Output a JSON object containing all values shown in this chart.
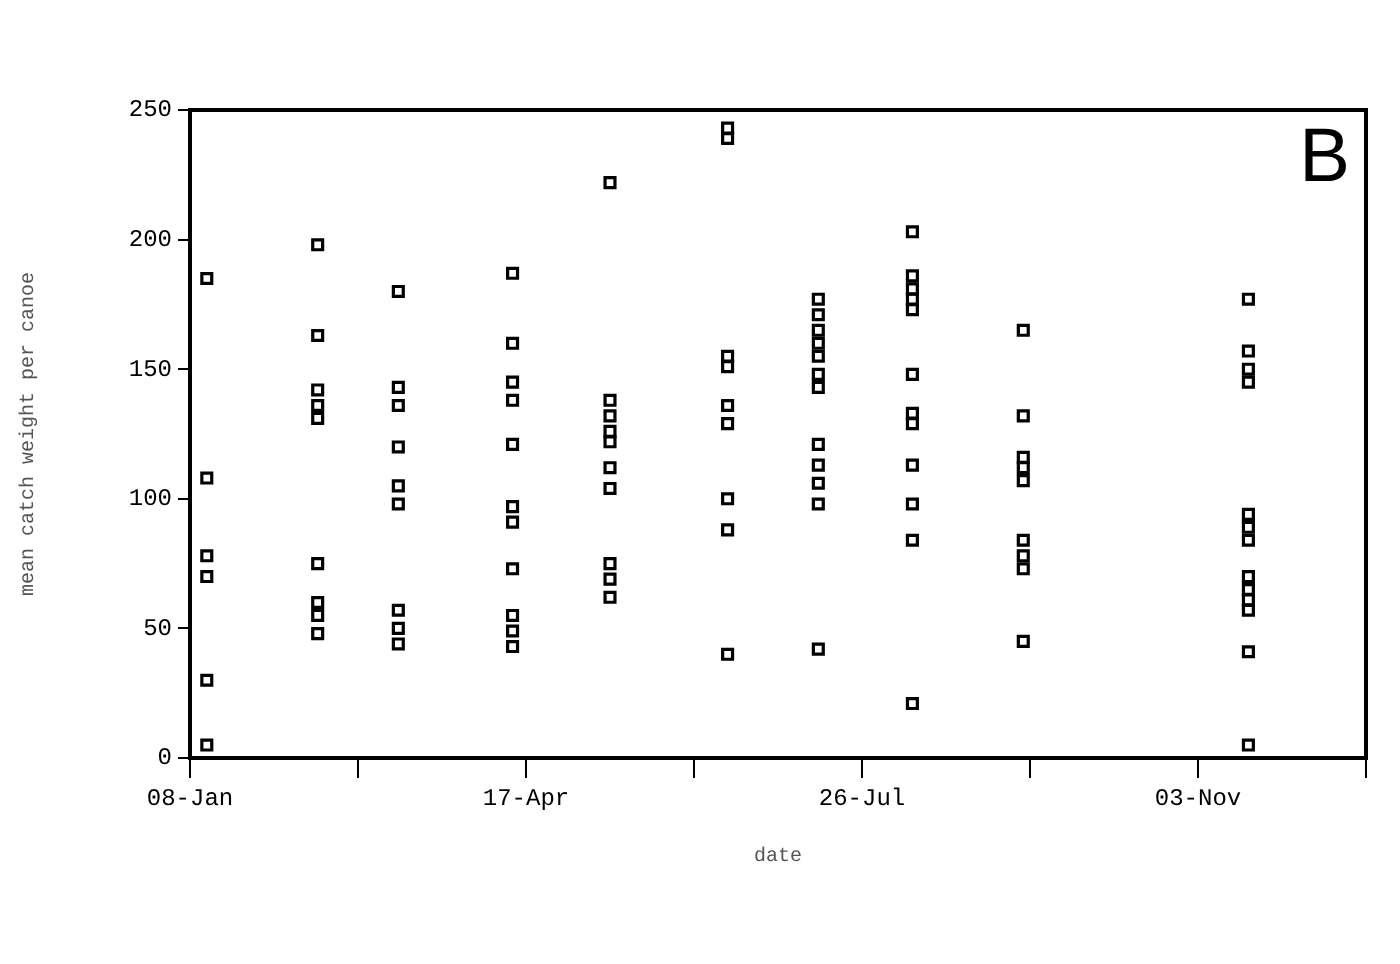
{
  "chart_data": {
    "type": "scatter",
    "xlabel": "date",
    "ylabel": "mean catch weight per canoe",
    "annotations": [
      "B"
    ],
    "x": [
      "--01-13",
      "--01-13",
      "--01-13",
      "--01-13",
      "--01-13",
      "--01-13",
      "--02-15",
      "--02-15",
      "--02-15",
      "--02-15",
      "--02-15",
      "--02-15",
      "--02-15",
      "--02-15",
      "--02-15",
      "--03-10",
      "--03-10",
      "--03-10",
      "--03-10",
      "--03-10",
      "--03-10",
      "--03-10",
      "--03-10",
      "--03-10",
      "--04-13",
      "--04-13",
      "--04-13",
      "--04-13",
      "--04-13",
      "--04-13",
      "--04-13",
      "--04-13",
      "--04-13",
      "--04-13",
      "--04-13",
      "--05-12",
      "--05-12",
      "--05-12",
      "--05-12",
      "--05-12",
      "--05-12",
      "--05-12",
      "--05-12",
      "--05-12",
      "--05-12",
      "--06-16",
      "--06-16",
      "--06-16",
      "--06-16",
      "--06-16",
      "--06-16",
      "--06-16",
      "--06-16",
      "--06-16",
      "--07-13",
      "--07-13",
      "--07-13",
      "--07-13",
      "--07-13",
      "--07-13",
      "--07-13",
      "--07-13",
      "--07-13",
      "--07-13",
      "--07-13",
      "--07-13",
      "--08-10",
      "--08-10",
      "--08-10",
      "--08-10",
      "--08-10",
      "--08-10",
      "--08-10",
      "--08-10",
      "--08-10",
      "--08-10",
      "--08-10",
      "--08-10",
      "--09-12",
      "--09-12",
      "--09-12",
      "--09-12",
      "--09-12",
      "--09-12",
      "--09-12",
      "--09-12",
      "--09-12",
      "--11-18",
      "--11-18",
      "--11-18",
      "--11-18",
      "--11-18",
      "--11-18",
      "--11-18",
      "--11-18",
      "--11-18",
      "--11-18",
      "--11-18",
      "--11-18",
      "--11-18"
    ],
    "values": [
      185,
      108,
      78,
      70,
      30,
      5,
      198,
      163,
      142,
      136,
      131,
      75,
      60,
      55,
      48,
      180,
      143,
      136,
      120,
      105,
      98,
      57,
      50,
      44,
      187,
      160,
      145,
      138,
      121,
      97,
      91,
      73,
      55,
      49,
      43,
      222,
      138,
      132,
      126,
      122,
      112,
      104,
      75,
      69,
      62,
      243,
      239,
      155,
      151,
      136,
      129,
      100,
      88,
      40,
      177,
      171,
      165,
      160,
      155,
      148,
      143,
      121,
      113,
      106,
      98,
      42,
      203,
      186,
      181,
      177,
      173,
      148,
      133,
      129,
      113,
      98,
      84,
      21,
      165,
      132,
      116,
      112,
      107,
      84,
      78,
      73,
      45,
      177,
      157,
      150,
      145,
      94,
      89,
      84,
      70,
      65,
      61,
      57,
      41,
      5
    ],
    "color": "#000000",
    "marker": "square",
    "grid": false,
    "xlim": [
      "--01-08",
      "--12-23"
    ],
    "xticks": [
      {
        "value": "--01-08",
        "label": "08-Jan"
      },
      {
        "value": "--02-27",
        "label": null
      },
      {
        "value": "--04-17",
        "label": "17-Apr"
      },
      {
        "value": "--06-06",
        "label": null
      },
      {
        "value": "--07-26",
        "label": "26-Jul"
      },
      {
        "value": "--09-14",
        "label": null
      },
      {
        "value": "--11-03",
        "label": "03-Nov"
      },
      {
        "value": "--12-23",
        "label": null
      }
    ],
    "ylim": [
      0,
      250
    ],
    "yticks": [
      0,
      50,
      100,
      150,
      200,
      250
    ]
  }
}
